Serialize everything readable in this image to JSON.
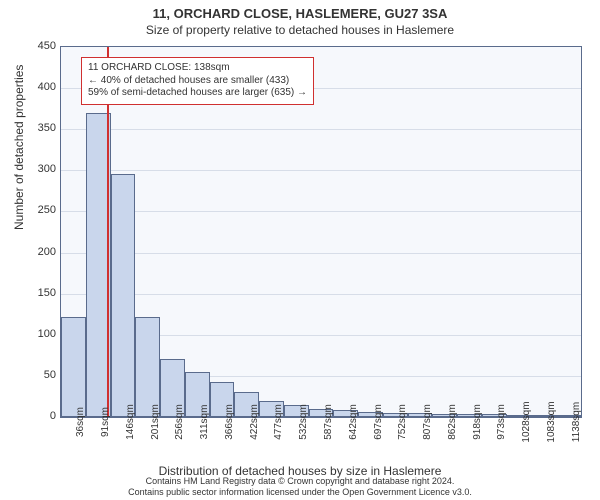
{
  "chart": {
    "type": "histogram",
    "title_main": "11, ORCHARD CLOSE, HASLEMERE, GU27 3SA",
    "title_sub": "Size of property relative to detached houses in Haslemere",
    "ylabel": "Number of detached properties",
    "xlabel": "Distribution of detached houses by size in Haslemere",
    "background_color": "#f6f8fc",
    "axis_color": "#5a6b8c",
    "grid_color": "#d7dde8",
    "bar_fill": "#c9d6ec",
    "bar_stroke": "#5a6b8c",
    "marker_color": "#d03030",
    "ylim": [
      0,
      450
    ],
    "ytick_step": 50,
    "yticks": [
      0,
      50,
      100,
      150,
      200,
      250,
      300,
      350,
      400,
      450
    ],
    "xticks": [
      "36sqm",
      "91sqm",
      "146sqm",
      "201sqm",
      "256sqm",
      "311sqm",
      "366sqm",
      "422sqm",
      "477sqm",
      "532sqm",
      "587sqm",
      "642sqm",
      "697sqm",
      "752sqm",
      "807sqm",
      "862sqm",
      "918sqm",
      "973sqm",
      "1028sqm",
      "1083sqm",
      "1138sqm"
    ],
    "values": [
      122,
      370,
      295,
      122,
      70,
      55,
      42,
      30,
      20,
      15,
      10,
      8,
      6,
      5,
      5,
      4,
      4,
      4,
      3,
      3,
      2
    ],
    "marker_x_index": 1.85,
    "annotation": {
      "line1": "11 ORCHARD CLOSE: 138sqm",
      "line2": "← 40% of detached houses are smaller (433)",
      "line3": "59% of semi-detached houses are larger (635) →"
    },
    "footer_line1": "Contains HM Land Registry data © Crown copyright and database right 2024.",
    "footer_line2": "Contains public sector information licensed under the Open Government Licence v3.0."
  }
}
